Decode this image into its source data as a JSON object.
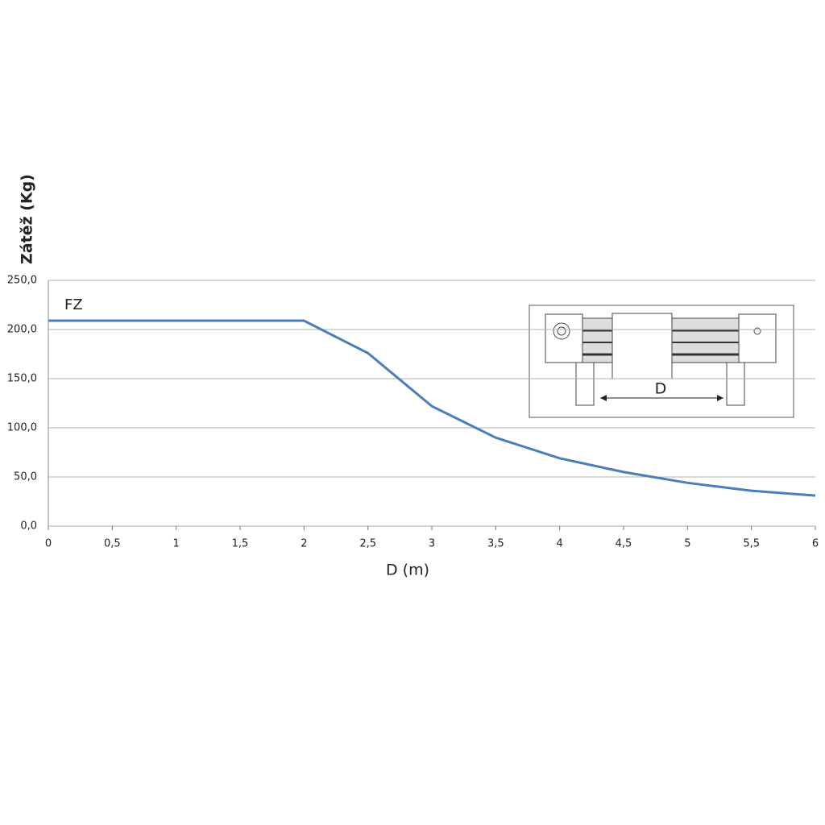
{
  "chart_data": {
    "type": "line",
    "xlabel": "D (m)",
    "ylabel": "Zátěž (Kg)",
    "x": [
      0,
      0.5,
      1,
      1.5,
      2,
      2.5,
      3,
      3.5,
      4,
      4.5,
      5,
      5.5,
      6
    ],
    "series": [
      {
        "name": "FZ",
        "color": "#4a7ebb",
        "values": [
          209,
          209,
          209,
          209,
          209,
          176,
          122,
          90,
          69,
          55,
          44,
          36,
          31
        ]
      }
    ],
    "xlim": [
      0,
      6
    ],
    "xticks": [
      0,
      {
        "value": 0.5,
        "label": "0,5"
      },
      1,
      {
        "value": 1.5,
        "label": "1,5"
      },
      2,
      {
        "value": 2.5,
        "label": "2,5"
      },
      3,
      {
        "value": 3.5,
        "label": "3,5"
      },
      4,
      {
        "value": 4.5,
        "label": "4,5"
      },
      5,
      {
        "value": 5.5,
        "label": "5,5"
      },
      6
    ],
    "ylim": [
      0,
      250
    ],
    "yticks": [
      {
        "value": 0,
        "label": "0,0"
      },
      {
        "value": 50,
        "label": "50,0"
      },
      {
        "value": 100,
        "label": "100,0"
      },
      {
        "value": 150,
        "label": "150,0"
      },
      {
        "value": 200,
        "label": "200,0"
      },
      {
        "value": 250,
        "label": "250,0"
      }
    ],
    "grid": true,
    "annotations": [
      "D"
    ]
  }
}
